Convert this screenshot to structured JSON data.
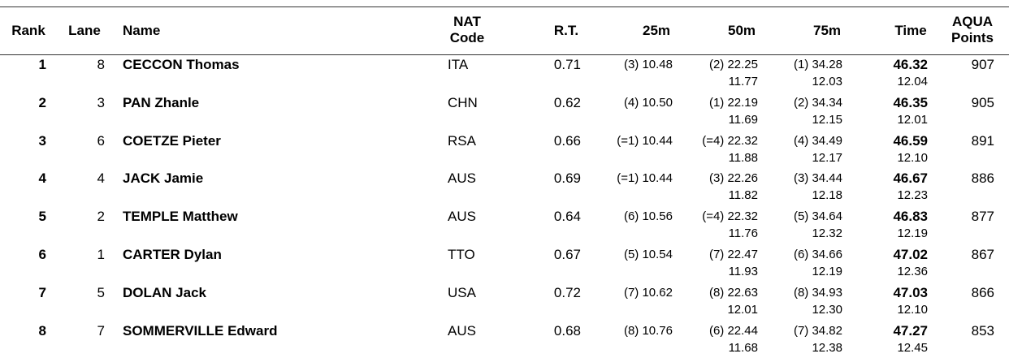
{
  "table": {
    "headers": [
      [
        "Rank"
      ],
      [
        "Lane"
      ],
      [
        "Name"
      ],
      [
        "NAT",
        "Code"
      ],
      [
        "R.T."
      ],
      [
        "25m"
      ],
      [
        "50m"
      ],
      [
        "75m"
      ],
      [
        "Time"
      ],
      [
        "AQUA",
        "Points"
      ]
    ],
    "rows": [
      [
        "1",
        "8",
        "CECCON Thomas",
        "ITA",
        "0.71",
        "(3) 10.48",
        "(2) 22.25",
        "11.77",
        "(1) 34.28",
        "12.03",
        "46.32",
        "12.04",
        "907"
      ],
      [
        "2",
        "3",
        "PAN Zhanle",
        "CHN",
        "0.62",
        "(4) 10.50",
        "(1) 22.19",
        "11.69",
        "(2) 34.34",
        "12.15",
        "46.35",
        "12.01",
        "905"
      ],
      [
        "3",
        "6",
        "COETZE Pieter",
        "RSA",
        "0.66",
        "(=1) 10.44",
        "(=4) 22.32",
        "11.88",
        "(4) 34.49",
        "12.17",
        "46.59",
        "12.10",
        "891"
      ],
      [
        "4",
        "4",
        "JACK Jamie",
        "AUS",
        "0.69",
        "(=1) 10.44",
        "(3) 22.26",
        "11.82",
        "(3) 34.44",
        "12.18",
        "46.67",
        "12.23",
        "886"
      ],
      [
        "5",
        "2",
        "TEMPLE Matthew",
        "AUS",
        "0.64",
        "(6) 10.56",
        "(=4) 22.32",
        "11.76",
        "(5) 34.64",
        "12.32",
        "46.83",
        "12.19",
        "877"
      ],
      [
        "6",
        "1",
        "CARTER Dylan",
        "TTO",
        "0.67",
        "(5) 10.54",
        "(7) 22.47",
        "11.93",
        "(6) 34.66",
        "12.19",
        "47.02",
        "12.36",
        "867"
      ],
      [
        "7",
        "5",
        "DOLAN Jack",
        "USA",
        "0.72",
        "(7) 10.62",
        "(8) 22.63",
        "12.01",
        "(8) 34.93",
        "12.30",
        "47.03",
        "12.10",
        "866"
      ],
      [
        "8",
        "7",
        "SOMMERVILLE Edward",
        "AUS",
        "0.68",
        "(8) 10.76",
        "(6) 22.44",
        "11.68",
        "(7) 34.82",
        "12.38",
        "47.27",
        "12.45",
        "853"
      ]
    ]
  }
}
